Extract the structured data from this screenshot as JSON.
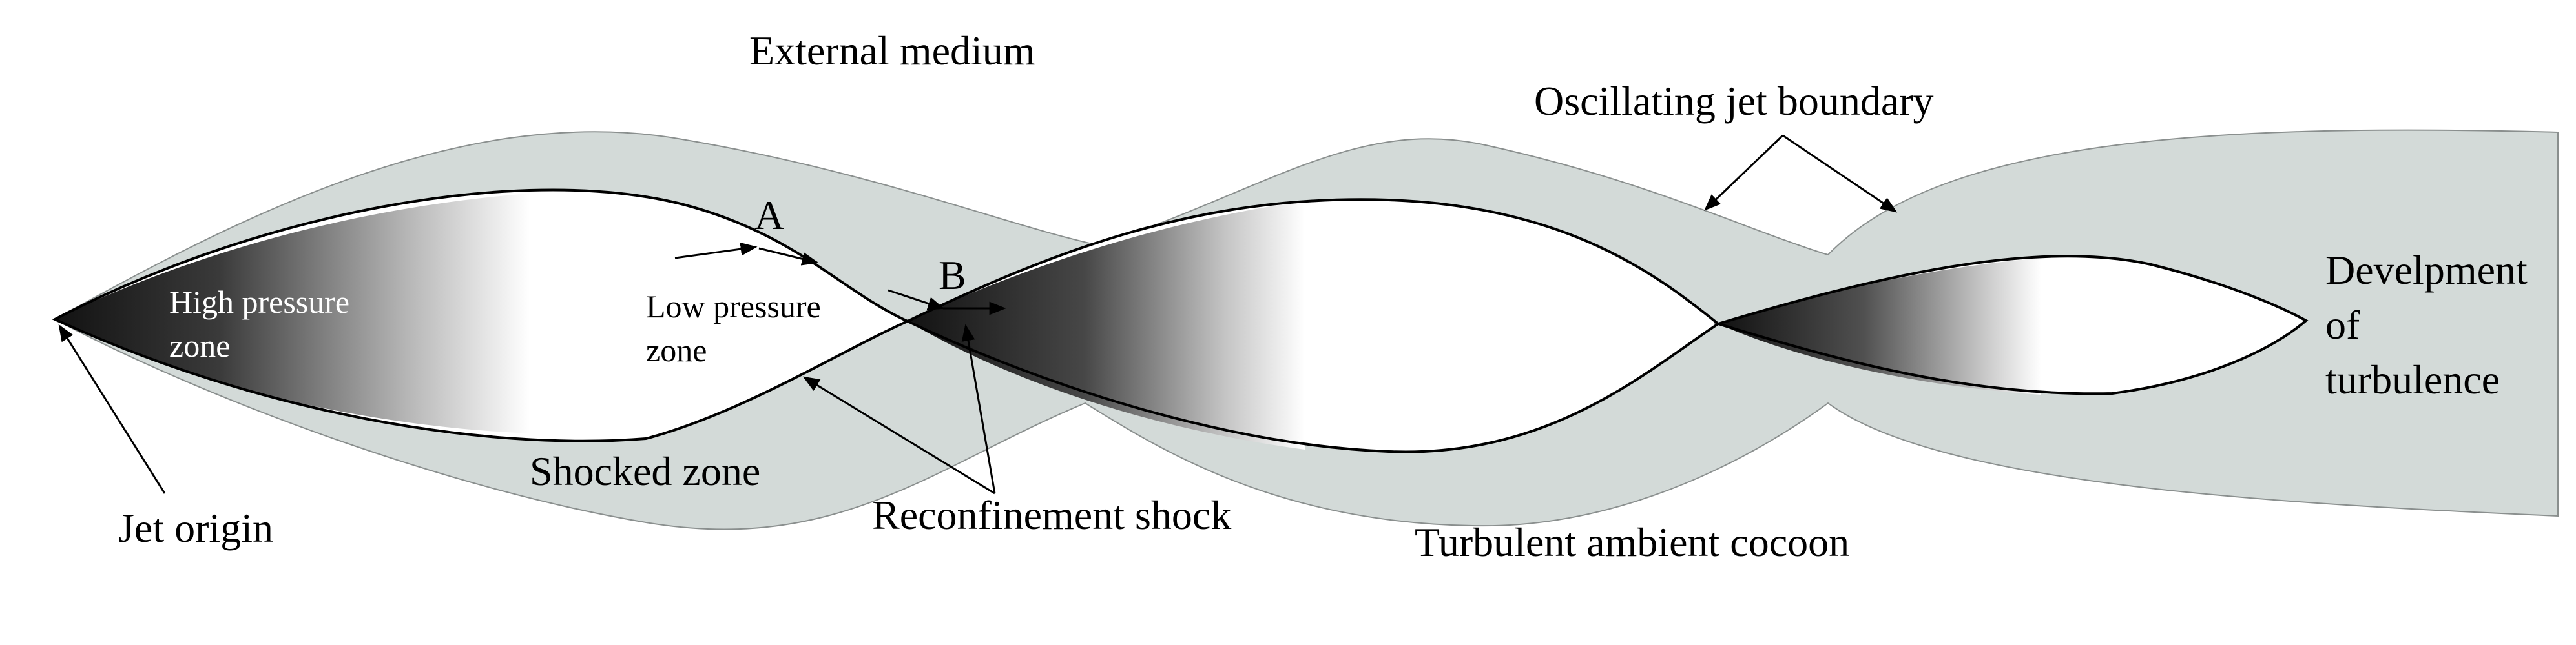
{
  "labels": {
    "external_medium": "External medium",
    "oscillating_jet_boundary": "Oscillating jet boundary",
    "high_pressure_zone_line1": "High pressure",
    "high_pressure_zone_line2": "zone",
    "low_pressure_zone_line1": "Low pressure",
    "low_pressure_zone_line2": "zone",
    "point_a": "A",
    "point_b": "B",
    "shocked_zone": "Shocked zone",
    "jet_origin": "Jet origin",
    "reconfinement_shock": "Reconfinement shock",
    "turbulent_ambient_cocoon": "Turbulent ambient cocoon",
    "development_line1": "Develpment",
    "development_line2": "of",
    "development_line3": "turbulence"
  },
  "colors": {
    "cocoon_fill": "#d3dad8",
    "shock_dark": "#111111",
    "jet_light": "#ffffff",
    "outline": "#000000",
    "background": "#ffffff"
  }
}
